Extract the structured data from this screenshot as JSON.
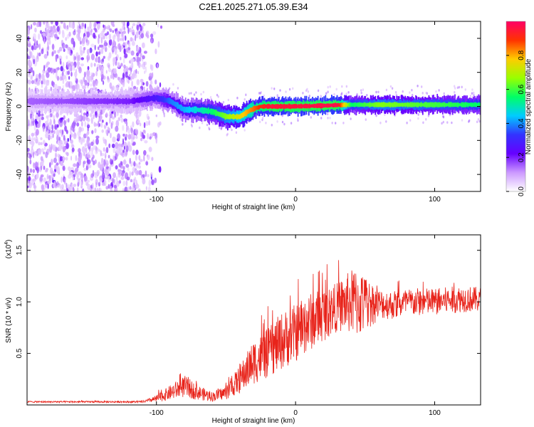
{
  "title": "C2E1.2025.271.05.39.E34",
  "chart_data": [
    {
      "type": "heatmap",
      "name": "spectrogram",
      "xlabel": "Height of straight line (km)",
      "ylabel": "Frequency (Hz)",
      "xlim": [
        -193,
        133
      ],
      "ylim": [
        -50,
        50
      ],
      "xticks": [
        -100,
        0,
        100
      ],
      "yticks": [
        -40,
        -20,
        0,
        20,
        40
      ],
      "colorbar": {
        "label": "Normalized spectral amplitude",
        "range": [
          0,
          1
        ],
        "ticks": [
          "0.0",
          "0.2",
          "0.4",
          "0.6",
          "0.8"
        ],
        "colors": [
          "#ffffff",
          "#cc99ff",
          "#6600ff",
          "#3333ff",
          "#00ccff",
          "#00ff66",
          "#99ff00",
          "#ffcc00",
          "#ff3300",
          "#ff0066"
        ]
      },
      "ridge_center_hz": [
        [
          -193,
          3
        ],
        [
          -120,
          3
        ],
        [
          -100,
          5
        ],
        [
          -90,
          3
        ],
        [
          -80,
          -2
        ],
        [
          -70,
          -2
        ],
        [
          -60,
          -3
        ],
        [
          -50,
          -6
        ],
        [
          -40,
          -6
        ],
        [
          -32,
          -2
        ],
        [
          -25,
          0
        ],
        [
          0,
          0
        ],
        [
          40,
          1
        ],
        [
          80,
          1
        ],
        [
          133,
          1
        ]
      ],
      "ridge_amplitude": [
        [
          -193,
          0.15
        ],
        [
          -120,
          0.2
        ],
        [
          -100,
          0.28
        ],
        [
          -90,
          0.38
        ],
        [
          -75,
          0.45
        ],
        [
          -60,
          0.55
        ],
        [
          -45,
          0.7
        ],
        [
          -30,
          0.85
        ],
        [
          -20,
          0.95
        ],
        [
          30,
          0.97
        ],
        [
          40,
          0.55
        ],
        [
          60,
          0.65
        ],
        [
          100,
          0.6
        ],
        [
          133,
          0.55
        ]
      ],
      "scatter_fade_end_km": -105
    },
    {
      "type": "line",
      "name": "snr",
      "xlabel": "Height of straight line (km)",
      "ylabel": "SNR (10 * v/v)",
      "y_scale_label": "(x10",
      "y_scale_exp": "4",
      "xlim": [
        -193,
        133
      ],
      "ylim": [
        0,
        1.65
      ],
      "xticks": [
        -100,
        0,
        100
      ],
      "yticks": [
        0.5,
        1.0,
        1.5
      ],
      "ytick_labels": [
        "0.5",
        "1.0",
        "1.5"
      ],
      "color": "#e8231a",
      "envelope": [
        [
          -193,
          0.03
        ],
        [
          -110,
          0.03
        ],
        [
          -100,
          0.06
        ],
        [
          -90,
          0.12
        ],
        [
          -80,
          0.18
        ],
        [
          -70,
          0.12
        ],
        [
          -60,
          0.08
        ],
        [
          -50,
          0.12
        ],
        [
          -40,
          0.25
        ],
        [
          -30,
          0.42
        ],
        [
          -20,
          0.5
        ],
        [
          -10,
          0.62
        ],
        [
          0,
          0.7
        ],
        [
          10,
          0.8
        ],
        [
          20,
          0.88
        ],
        [
          30,
          0.95
        ],
        [
          40,
          1.0
        ],
        [
          50,
          0.98
        ],
        [
          60,
          0.98
        ],
        [
          70,
          0.97
        ],
        [
          80,
          0.99
        ],
        [
          90,
          1.0
        ],
        [
          100,
          1.0
        ],
        [
          120,
          1.03
        ],
        [
          133,
          1.02
        ]
      ],
      "noise_frac": [
        [
          -193,
          0.25
        ],
        [
          -110,
          0.3
        ],
        [
          -100,
          0.6
        ],
        [
          -70,
          0.6
        ],
        [
          -40,
          0.55
        ],
        [
          -10,
          0.45
        ],
        [
          30,
          0.25
        ],
        [
          45,
          0.35
        ],
        [
          60,
          0.15
        ],
        [
          133,
          0.12
        ]
      ]
    }
  ]
}
